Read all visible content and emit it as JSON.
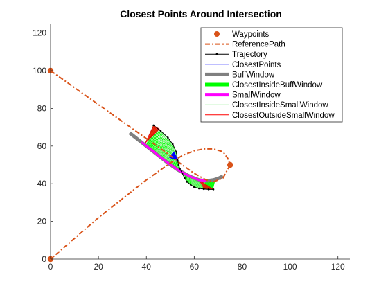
{
  "chart_data": {
    "type": "line",
    "title": "Closest Points Around Intersection",
    "xlabel": "",
    "ylabel": "",
    "xlim": [
      0,
      125
    ],
    "ylim": [
      0,
      125
    ],
    "x_ticks": [
      0,
      20,
      40,
      60,
      80,
      100,
      120
    ],
    "y_ticks": [
      0,
      20,
      40,
      60,
      80,
      100,
      120
    ],
    "x_tick_labels": [
      "0",
      "20",
      "40",
      "60",
      "80",
      "100",
      "120"
    ],
    "y_tick_labels": [
      "0",
      "20",
      "40",
      "60",
      "80",
      "100",
      "120"
    ],
    "grid": false,
    "legend_position": "top-right",
    "legend": [
      {
        "label": "Waypoints",
        "color": "#D95319",
        "style": "marker"
      },
      {
        "label": "ReferencePath",
        "color": "#D95319",
        "style": "dashdot"
      },
      {
        "label": "Trajectory",
        "color": "#000000",
        "style": "line-dot"
      },
      {
        "label": "ClosestPoints",
        "color": "#0000FF",
        "style": "line"
      },
      {
        "label": "BuffWindow",
        "color": "#808080",
        "style": "thick"
      },
      {
        "label": "ClosestInsideBuffWindow",
        "color": "#00FF00",
        "style": "thick"
      },
      {
        "label": "SmallWindow",
        "color": "#FF00FF",
        "style": "thick"
      },
      {
        "label": "ClosestInsideSmallWindow",
        "color": "#90EE90",
        "style": "line"
      },
      {
        "label": "ClosestOutsideSmallWindow",
        "color": "#FF0000",
        "style": "line"
      }
    ],
    "waypoints": {
      "x": [
        0,
        75,
        0
      ],
      "y": [
        100,
        50,
        0
      ]
    },
    "reference_path": {
      "x": [
        0,
        10,
        20,
        30,
        40,
        50,
        55,
        60,
        65,
        68,
        72,
        75,
        74,
        72,
        68,
        64,
        60,
        55,
        50,
        40,
        30,
        20,
        10,
        0
      ],
      "y": [
        100,
        91,
        82,
        73,
        64,
        55,
        50,
        45.5,
        42,
        41,
        43,
        50,
        53.5,
        57,
        58.5,
        58.5,
        57.5,
        55,
        51,
        42,
        32,
        22,
        11,
        0
      ]
    },
    "buff_window": {
      "x": [
        33,
        38,
        43,
        48,
        53,
        58,
        62,
        65,
        68,
        70,
        72
      ],
      "y": [
        67,
        62,
        57,
        52,
        47.5,
        44,
        42,
        41.5,
        42,
        42.8,
        44
      ]
    },
    "small_window": {
      "x": [
        38,
        43,
        48,
        53,
        58,
        62,
        65
      ],
      "y": [
        62,
        57,
        52,
        47.5,
        44,
        42,
        41.5
      ]
    },
    "trajectory": {
      "x": [
        43,
        46,
        49,
        51,
        52.5,
        53,
        53.5,
        54,
        55,
        56,
        57,
        58.5,
        60,
        62,
        64,
        66,
        68
      ],
      "y": [
        71,
        68,
        64.5,
        61,
        57,
        52.5,
        50,
        48,
        45.5,
        43,
        41,
        39.5,
        38.2,
        37.5,
        37.2,
        37,
        37
      ]
    },
    "closest_inside_buff_window": {
      "x": [
        43,
        46,
        49,
        51,
        52.5,
        53,
        53.5,
        54,
        55,
        56,
        57,
        58.5,
        60,
        62,
        64,
        66,
        68
      ],
      "y": [
        71,
        68,
        64.5,
        61,
        57,
        52.5,
        50,
        48,
        45.5,
        43,
        41,
        39.5,
        38.2,
        37.5,
        37.2,
        37,
        37
      ],
      "fx": [
        40,
        42,
        44,
        46,
        48,
        50,
        51.5,
        53,
        54.5,
        56,
        57.5,
        59,
        61,
        63,
        65,
        67,
        69
      ],
      "fy": [
        60,
        58.5,
        56.5,
        54.5,
        52,
        50,
        48.5,
        47.5,
        46.5,
        45.5,
        44.5,
        43.5,
        42.5,
        42,
        41.8,
        41.9,
        42.3
      ]
    },
    "closest_inside_small_window": {
      "x": [
        46,
        49,
        51,
        52.5,
        54,
        56,
        58.5,
        60,
        62,
        64
      ],
      "y": [
        68,
        64.5,
        61,
        57,
        48,
        43,
        39.5,
        38.2,
        37.5,
        37.2
      ],
      "fx": [
        44,
        46,
        48,
        50,
        53,
        56,
        59,
        61,
        63,
        65
      ],
      "fy": [
        56.5,
        54.5,
        52,
        50,
        47.5,
        45.5,
        43.5,
        42.5,
        42,
        41.8
      ]
    },
    "closest_outside_small_window": [
      {
        "x": [
          43,
          39.5,
          45.5
        ],
        "y": [
          71,
          61.5,
          69
        ]
      },
      {
        "x": [
          62,
          64,
          68
        ],
        "y": [
          42,
          37.5,
          37
        ]
      }
    ],
    "closest_points": [
      {
        "x": [
          51.5,
          53.5,
          49.5
        ],
        "y": [
          57,
          52,
          54
        ]
      }
    ]
  }
}
